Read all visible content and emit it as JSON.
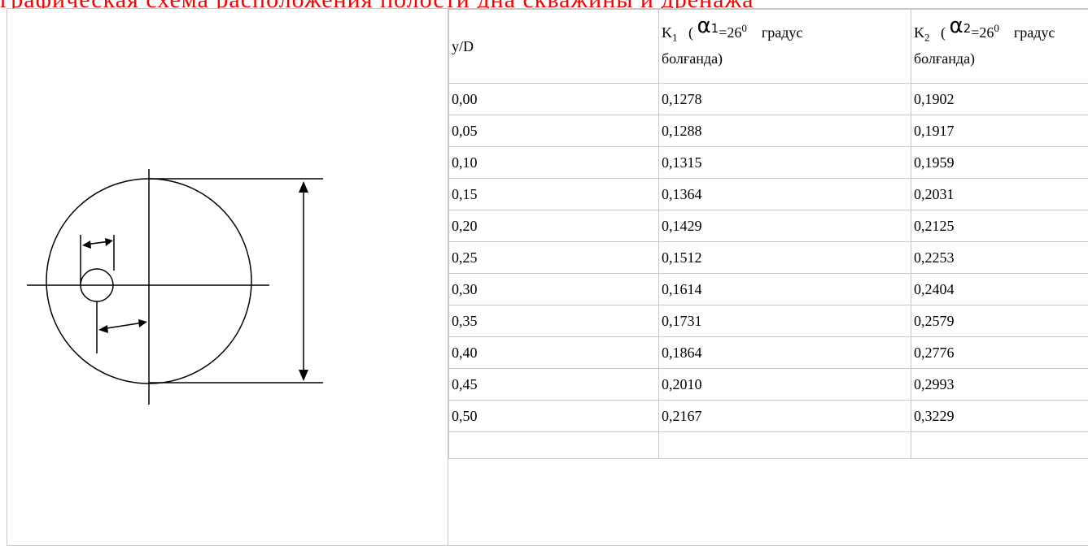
{
  "red_heading_text": "графическая схема расположения полости дна скважины и дренажа",
  "table": {
    "header": {
      "col1": "y/D",
      "col2": {
        "k_letter": "K",
        "k_sub": "1",
        "paren_open": "(",
        "alpha_letter": "α",
        "alpha_sub": "1",
        "eq": "=26",
        "deg": "0",
        "word": "градус",
        "line2": "болғанда)"
      },
      "col3": {
        "k_letter": "K",
        "k_sub": "2",
        "paren_open": "(",
        "alpha_letter": "α",
        "alpha_sub": "2",
        "eq": "=26",
        "deg": "0",
        "word": "градус",
        "line2": "болғанда)"
      }
    },
    "rows": [
      [
        "0,00",
        "0,1278",
        "0,1902"
      ],
      [
        "0,05",
        "0,1288",
        "0,1917"
      ],
      [
        "0,10",
        "0,1315",
        "0,1959"
      ],
      [
        "0,15",
        "0,1364",
        "0,2031"
      ],
      [
        "0,20",
        "0,1429",
        "0,2125"
      ],
      [
        "0,25",
        "0,1512",
        "0,2253"
      ],
      [
        "0,30",
        "0,1614",
        "0,2404"
      ],
      [
        "0,35",
        "0,1731",
        "0,2579"
      ],
      [
        "0,40",
        "0,1864",
        "0,2776"
      ],
      [
        "0,45",
        "0,2010",
        "0,2993"
      ],
      [
        "0,50",
        "0,2167",
        "0,3229"
      ]
    ]
  },
  "colors": {
    "heading_red": "#ff0000",
    "border_gray": "#c8c8c8"
  }
}
